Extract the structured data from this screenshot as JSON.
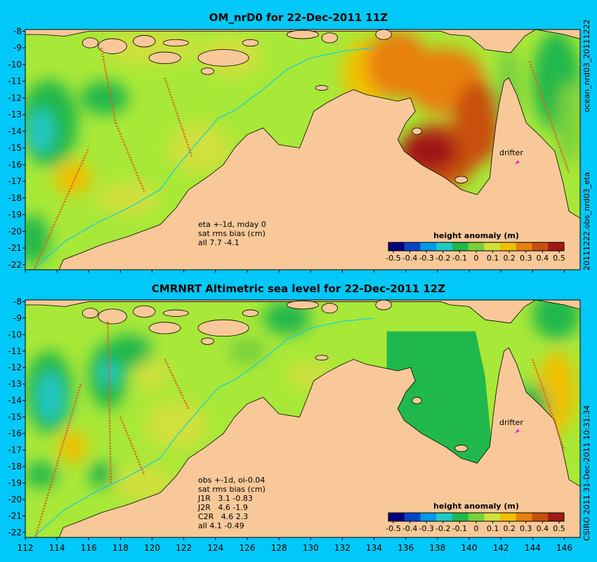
{
  "titles": {
    "top": "OM_nrD0 for 22-Dec-2011 11Z",
    "bottom": "CMRNRT Altimetric sea level  for 22-Dec-2011 12Z"
  },
  "side_labels": {
    "top": "ocean_nrd03_20111222",
    "middle": "20111222.obs_nrd03_eta",
    "bottom": "CSIRO 2011  31-Dec-2011 10:31:34"
  },
  "top_panel_annotation": [
    "eta +-1d, mday 0",
    "sat rms bias (cm)",
    "all 7.7 -4.1"
  ],
  "bottom_panel_annotation": [
    "obs +-1d, oi-0.04",
    "sat rms bias (cm)",
    "J1R   3.1 -0.83",
    "J2R   4.6 -1.9",
    "C2R   4.6 2.3",
    "all 4.1 -0.49"
  ],
  "drifter_label": "drifter",
  "colorbar": {
    "title": "height anomaly (m)",
    "tick_labels": [
      "-0.5",
      "-0.4",
      "-0.3",
      "-0.2",
      "-0.1",
      "0",
      "0.1",
      "0.2",
      "0.3",
      "0.4",
      "0.5"
    ],
    "colors": [
      "#00007c",
      "#0044c8",
      "#0098e8",
      "#20c8c8",
      "#20b84c",
      "#78d03c",
      "#d0e03c",
      "#f0c000",
      "#e88010",
      "#c85010",
      "#a01818"
    ]
  },
  "chart_data": [
    {
      "type": "heatmap",
      "panel": "top",
      "title": "OM_nrD0 for 22-Dec-2011 11Z",
      "xlim": [
        112,
        147
      ],
      "ylim": [
        -22.3,
        -7.9
      ],
      "x_ticks": [
        112,
        114,
        116,
        118,
        120,
        122,
        124,
        126,
        128,
        130,
        132,
        134,
        136,
        138,
        140,
        142,
        144,
        146
      ],
      "y_ticks": [
        -8,
        -9,
        -10,
        -11,
        -12,
        -13,
        -14,
        -15,
        -16,
        -17,
        -18,
        -19,
        -20,
        -21,
        -22
      ],
      "value_range": [
        -0.5,
        0.5
      ],
      "colorbar_label": "height anomaly (m)",
      "drifter": [
        143.1,
        -15.9
      ]
    },
    {
      "type": "heatmap",
      "panel": "bottom",
      "title": "CMRNRT Altimetric sea level  for 22-Dec-2011 12Z",
      "xlim": [
        112,
        147
      ],
      "ylim": [
        -22.3,
        -7.9
      ],
      "x_ticks": [
        112,
        114,
        116,
        118,
        120,
        122,
        124,
        126,
        128,
        130,
        132,
        134,
        136,
        138,
        140,
        142,
        144,
        146
      ],
      "y_ticks": [
        -8,
        -9,
        -10,
        -11,
        -12,
        -13,
        -14,
        -15,
        -16,
        -17,
        -18,
        -19,
        -20,
        -21,
        -22
      ],
      "value_range": [
        -0.5,
        0.5
      ],
      "colorbar_label": "height anomaly (m)",
      "drifter": [
        143.1,
        -15.9
      ]
    }
  ]
}
